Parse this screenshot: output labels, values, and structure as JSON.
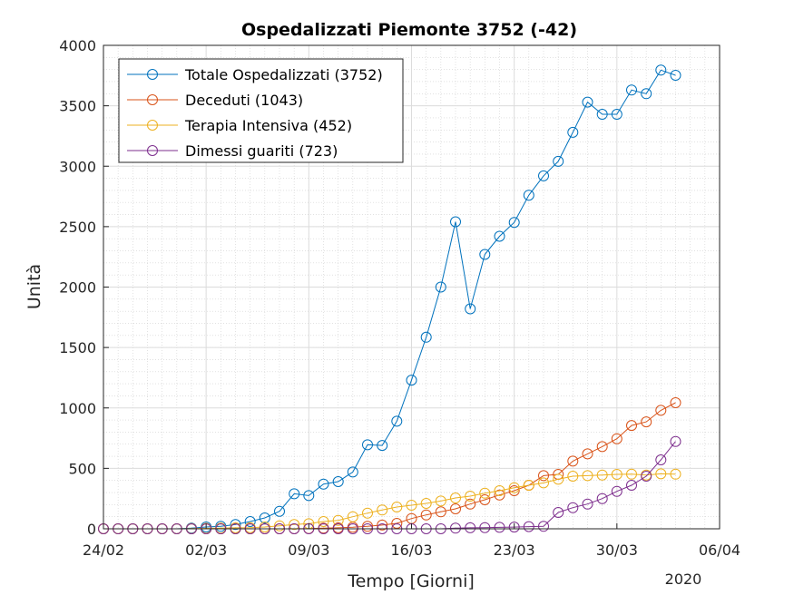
{
  "chart_data": {
    "type": "line",
    "title": "Ospedalizzati Piemonte 3752 (-42)",
    "xlabel": "Tempo [Giorni]",
    "ylabel": "Unità",
    "year_label": "2020",
    "x_start": "2020-02-24",
    "x_ticks": [
      "24/02",
      "02/03",
      "09/03",
      "16/03",
      "23/03",
      "30/03",
      "06/04"
    ],
    "xlim": [
      "2020-02-24",
      "2020-04-06"
    ],
    "ylim": [
      0,
      4000
    ],
    "y_ticks": [
      0,
      500,
      1000,
      1500,
      2000,
      2500,
      3000,
      3500,
      4000
    ],
    "grid": true,
    "minor_grid": true,
    "legend_position": "top-left",
    "series": [
      {
        "name": "Totale Ospedalizzati (3752)",
        "color": "#0072BD",
        "values": [
          0,
          0,
          0,
          0,
          0,
          0,
          5,
          15,
          20,
          35,
          60,
          90,
          145,
          290,
          275,
          370,
          390,
          470,
          695,
          690,
          890,
          1230,
          1585,
          2000,
          2540,
          1820,
          2270,
          2420,
          2535,
          2760,
          2920,
          3040,
          3280,
          3530,
          3430,
          3430,
          3630,
          3600,
          3795,
          3752
        ]
      },
      {
        "name": "Deceduti (1043)",
        "color": "#D95319",
        "values": [
          0,
          0,
          0,
          0,
          0,
          0,
          0,
          0,
          0,
          0,
          0,
          0,
          0,
          0,
          2,
          5,
          8,
          13,
          20,
          31,
          45,
          85,
          115,
          140,
          165,
          205,
          240,
          280,
          315,
          360,
          440,
          450,
          560,
          620,
          680,
          745,
          855,
          885,
          980,
          1043
        ]
      },
      {
        "name": "Terapia Intensiva (452)",
        "color": "#EDB120",
        "values": [
          0,
          0,
          0,
          0,
          0,
          0,
          2,
          4,
          6,
          8,
          10,
          15,
          25,
          35,
          42,
          60,
          70,
          100,
          130,
          155,
          180,
          195,
          210,
          230,
          255,
          270,
          295,
          315,
          340,
          360,
          380,
          410,
          435,
          440,
          445,
          450,
          452,
          445,
          455,
          452
        ]
      },
      {
        "name": "Dimessi guariti (723)",
        "color": "#7E2F8E",
        "values": [
          0,
          0,
          0,
          0,
          0,
          0,
          0,
          0,
          0,
          0,
          0,
          0,
          0,
          0,
          0,
          0,
          0,
          0,
          0,
          0,
          0,
          0,
          0,
          0,
          5,
          8,
          10,
          12,
          14,
          18,
          20,
          135,
          175,
          205,
          250,
          310,
          360,
          435,
          570,
          723
        ]
      }
    ]
  }
}
